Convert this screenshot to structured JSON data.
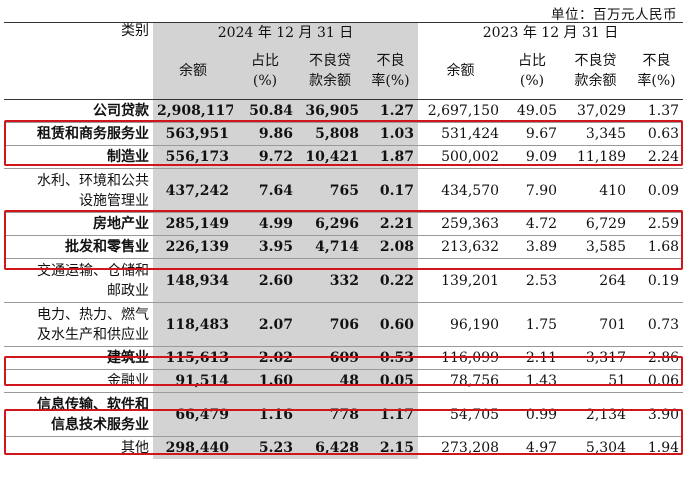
{
  "unit": "单位：百万元人民币",
  "headers": {
    "category": "类别",
    "year_current": "2024 年 12 月 31 日",
    "year_prior": "2023 年 12 月 31 日",
    "balance": "余额",
    "share_l1": "占比",
    "share_l2": "(%)",
    "npl_amt_l1": "不良贷",
    "npl_amt_l2": "款余额",
    "npl_rate_l1": "不良",
    "npl_rate_l2": "率(%)"
  },
  "rows": [
    {
      "name": [
        "公司贷款"
      ],
      "c": [
        "2,908,117",
        "50.84",
        "36,905",
        "1.27"
      ],
      "p": [
        "2,697,150",
        "49.05",
        "37,029",
        "1.37"
      ]
    },
    {
      "name": [
        "租赁和商务服务业"
      ],
      "c": [
        "563,951",
        "9.86",
        "5,808",
        "1.03"
      ],
      "p": [
        "531,424",
        "9.67",
        "3,345",
        "0.63"
      ]
    },
    {
      "name": [
        "制造业"
      ],
      "c": [
        "556,173",
        "9.72",
        "10,421",
        "1.87"
      ],
      "p": [
        "500,002",
        "9.09",
        "11,189",
        "2.24"
      ]
    },
    {
      "name": [
        "水利、环境和公共",
        "设施管理业"
      ],
      "c": [
        "437,242",
        "7.64",
        "765",
        "0.17"
      ],
      "p": [
        "434,570",
        "7.90",
        "410",
        "0.09"
      ]
    },
    {
      "name": [
        "房地产业"
      ],
      "c": [
        "285,149",
        "4.99",
        "6,296",
        "2.21"
      ],
      "p": [
        "259,363",
        "4.72",
        "6,729",
        "2.59"
      ]
    },
    {
      "name": [
        "批发和零售业"
      ],
      "c": [
        "226,139",
        "3.95",
        "4,714",
        "2.08"
      ],
      "p": [
        "213,632",
        "3.89",
        "3,585",
        "1.68"
      ]
    },
    {
      "name": [
        "交通运输、仓储和",
        "邮政业"
      ],
      "c": [
        "148,934",
        "2.60",
        "332",
        "0.22"
      ],
      "p": [
        "139,201",
        "2.53",
        "264",
        "0.19"
      ]
    },
    {
      "name": [
        "电力、热力、燃气",
        "及水生产和供应业"
      ],
      "c": [
        "118,483",
        "2.07",
        "706",
        "0.60"
      ],
      "p": [
        "96,190",
        "1.75",
        "701",
        "0.73"
      ]
    },
    {
      "name": [
        "建筑业"
      ],
      "c": [
        "115,613",
        "2.02",
        "609",
        "0.53"
      ],
      "p": [
        "116,099",
        "2.11",
        "3,317",
        "2.86"
      ]
    },
    {
      "name": [
        "金融业"
      ],
      "c": [
        "91,514",
        "1.60",
        "48",
        "0.05"
      ],
      "p": [
        "78,756",
        "1.43",
        "51",
        "0.06"
      ]
    },
    {
      "name": [
        "信息传输、软件和",
        "信息技术服务业"
      ],
      "c": [
        "66,479",
        "1.16",
        "778",
        "1.17"
      ],
      "p": [
        "54,705",
        "0.99",
        "2,134",
        "3.90"
      ]
    },
    {
      "name": [
        "其他"
      ],
      "c": [
        "298,440",
        "5.23",
        "6,428",
        "2.15"
      ],
      "p": [
        "273,208",
        "4.97",
        "5,304",
        "1.94"
      ]
    }
  ],
  "highlight_color": "#d0161b"
}
